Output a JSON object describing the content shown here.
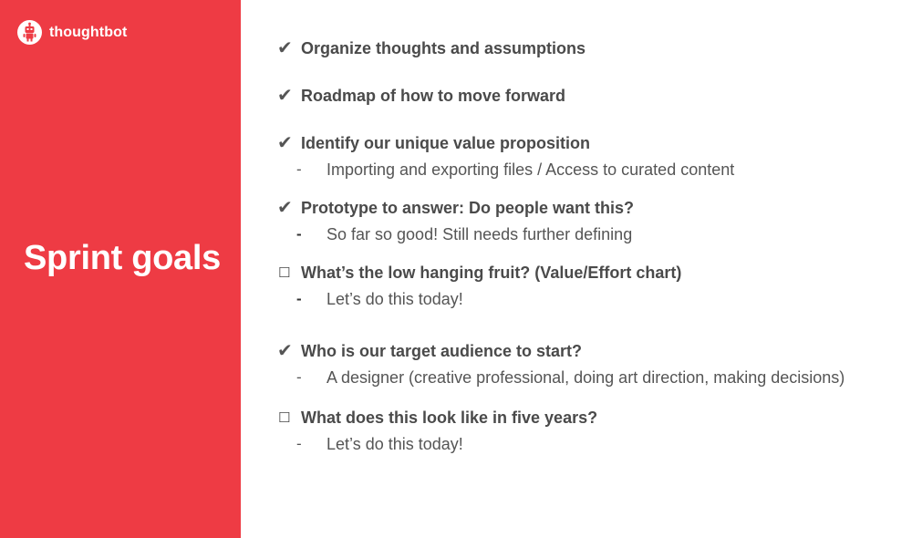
{
  "brand": {
    "name": "thoughtbot",
    "accent_color": "#ee3b44",
    "logo_icon": "robot-icon"
  },
  "slide": {
    "title": "Sprint goals"
  },
  "goals": [
    {
      "status": "checked",
      "label": "Organize thoughts and assumptions"
    },
    {
      "status": "checked",
      "label": "Roadmap of how to move forward"
    },
    {
      "status": "checked",
      "label": "Identify our unique value proposition",
      "note": "Importing and exporting files / Access to curated content"
    },
    {
      "status": "checked",
      "label": "Prototype to answer: Do people want this?",
      "note": "So far so good! Still needs further defining"
    },
    {
      "status": "unchecked",
      "label": "What’s the low hanging fruit? (Value/Effort chart)",
      "note": "Let’s do this today!"
    },
    {
      "status": "checked",
      "label": "Who is our target audience to start?",
      "note": "A designer (creative professional, doing art direction, making decisions)"
    },
    {
      "status": "unchecked",
      "label": "What does this look like in five years?",
      "note": "Let’s do this today!"
    }
  ],
  "symbols": {
    "check": "✔",
    "box": "☐",
    "dash": "-"
  }
}
